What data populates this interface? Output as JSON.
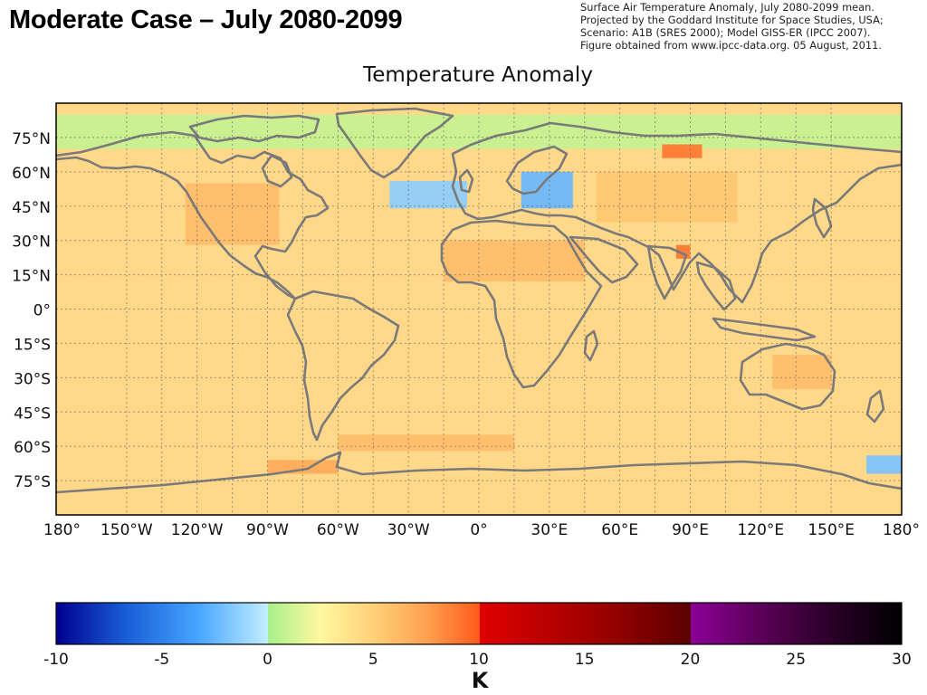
{
  "slide": {
    "title": "Moderate Case – July 2080-2099",
    "source_lines": [
      "Surface Air Temperature Anomaly, July 2080-2099 mean.",
      "Projected by the Goddard Institute for Space Studies, USA;",
      "Scenario: A1B (SRES 2000); Model GISS-ER (IPCC 2007).",
      "Figure obtained from www.ipcc-data.org. 05 August, 2011."
    ]
  },
  "map": {
    "title": "Temperature Anomaly",
    "projection": "equirectangular",
    "grid": true,
    "coastline_color": "#7a7a7a",
    "lat_labels": [
      "75°N",
      "60°N",
      "45°N",
      "30°N",
      "15°N",
      "0°",
      "15°S",
      "30°S",
      "45°S",
      "60°S",
      "75°S"
    ],
    "lon_labels": [
      "180°",
      "150°W",
      "120°W",
      "90°W",
      "60°W",
      "30°W",
      "0°",
      "30°E",
      "60°E",
      "90°E",
      "120°E",
      "150°E",
      "180°"
    ]
  },
  "colorbar": {
    "unit": "K",
    "tick_labels": [
      "-10",
      "-5",
      "0",
      "5",
      "10",
      "15",
      "20",
      "25",
      "30"
    ],
    "range": [
      -10,
      30
    ],
    "segments": [
      {
        "from": -10,
        "to": 0,
        "colors": [
          "#00008f",
          "#1a5fd8",
          "#46a4ff",
          "#c4eeff"
        ]
      },
      {
        "from": 0,
        "to": 10,
        "colors": [
          "#a8f08a",
          "#fff8a0",
          "#ffd078",
          "#ffa050",
          "#ff5a1a"
        ]
      },
      {
        "from": 10,
        "to": 20,
        "colors": [
          "#e00000",
          "#b80000",
          "#900000",
          "#5a0000"
        ]
      },
      {
        "from": 20,
        "to": 30,
        "colors": [
          "#8c0096",
          "#5a0058",
          "#2a0028",
          "#000000"
        ]
      }
    ]
  },
  "anomaly_regions": [
    {
      "label": "Arctic ocean",
      "lon": [
        -180,
        180
      ],
      "lat": [
        70,
        85
      ],
      "value": 0.8
    },
    {
      "label": "North Atlantic",
      "lon": [
        -38,
        -5
      ],
      "lat": [
        44,
        56
      ],
      "value": -1.5
    },
    {
      "label": "Baltic / Scandinavia",
      "lon": [
        18,
        40
      ],
      "lat": [
        44,
        60
      ],
      "value": -2.5
    },
    {
      "label": "North America interior",
      "lon": [
        -125,
        -85
      ],
      "lat": [
        28,
        55
      ],
      "value": 6
    },
    {
      "label": "Sahara",
      "lon": [
        -15,
        45
      ],
      "lat": [
        12,
        30
      ],
      "value": 6
    },
    {
      "label": "Central Asia",
      "lon": [
        50,
        110
      ],
      "lat": [
        38,
        60
      ],
      "value": 5.5
    },
    {
      "label": "Siberia hotspot",
      "lon": [
        78,
        95
      ],
      "lat": [
        66,
        72
      ],
      "value": 9
    },
    {
      "label": "Northern India hotspot",
      "lon": [
        84,
        90
      ],
      "lat": [
        22,
        28
      ],
      "value": 9
    },
    {
      "label": "Australia interior",
      "lon": [
        125,
        150
      ],
      "lat": [
        -35,
        -20
      ],
      "value": 6
    },
    {
      "label": "Southern Ocean band",
      "lon": [
        -60,
        15
      ],
      "lat": [
        -62,
        -55
      ],
      "value": 6
    },
    {
      "label": "Ross Sea",
      "lon": [
        165,
        180
      ],
      "lat": [
        -72,
        -64
      ],
      "value": -2
    },
    {
      "label": "Weddell Sea",
      "lon": [
        -90,
        -60
      ],
      "lat": [
        -72,
        -66
      ],
      "value": 7
    }
  ]
}
